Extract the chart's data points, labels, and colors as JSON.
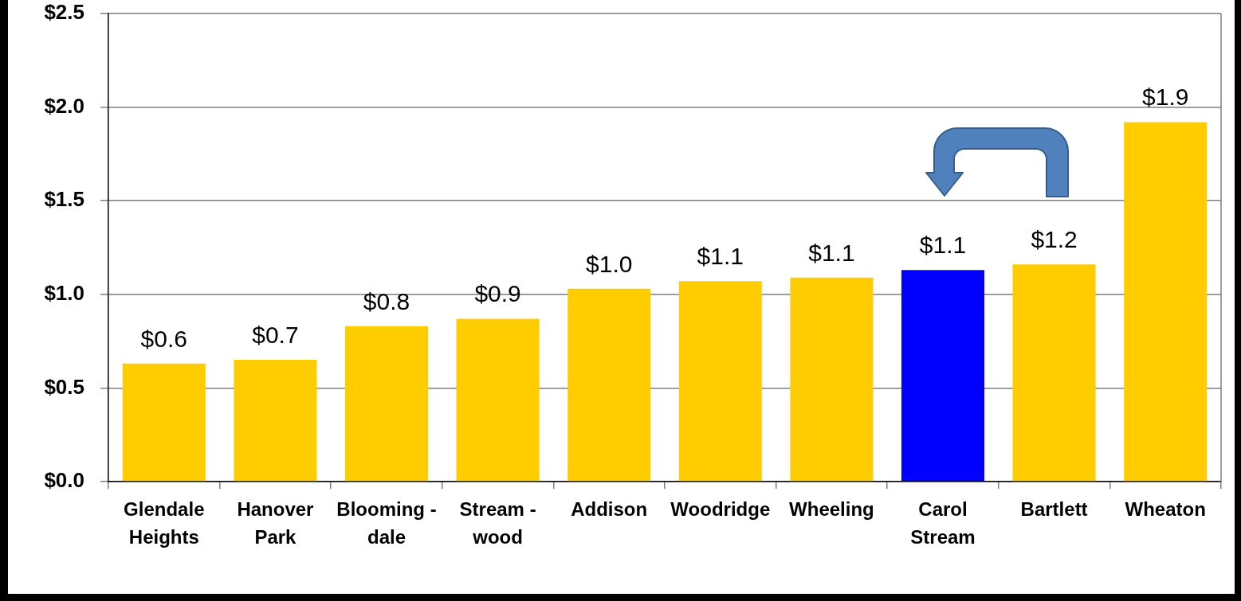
{
  "chart_data": {
    "type": "bar",
    "categories": [
      "Glendale\nHeights",
      "Hanover\nPark",
      "Blooming -\ndale",
      "Stream -\nwood",
      "Addison",
      "Woodridge",
      "Wheeling",
      "Carol\nStream",
      "Bartlett",
      "Wheaton"
    ],
    "values": [
      0.63,
      0.65,
      0.83,
      0.87,
      1.03,
      1.07,
      1.09,
      1.13,
      1.16,
      1.92
    ],
    "colors": [
      "#ffcc00",
      "#ffcc00",
      "#ffcc00",
      "#ffcc00",
      "#ffcc00",
      "#ffcc00",
      "#ffcc00",
      "#0000ff",
      "#ffcc00",
      "#ffcc00"
    ],
    "value_labels": [
      "$0.6",
      "$0.7",
      "$0.8",
      "$0.9",
      "$1.0",
      "$1.1",
      "$1.1",
      "$1.1",
      "$1.2",
      "$1.9"
    ],
    "ylim": [
      0,
      2.5
    ],
    "yticks": [
      {
        "value": 0,
        "label": "$0.0"
      },
      {
        "value": 0.5,
        "label": "$0.5"
      },
      {
        "value": 1,
        "label": "$1.0"
      },
      {
        "value": 1.5,
        "label": "$1.5"
      },
      {
        "value": 2,
        "label": "$2.0"
      },
      {
        "value": 2.5,
        "label": "$2.5"
      }
    ],
    "grid": "y"
  }
}
